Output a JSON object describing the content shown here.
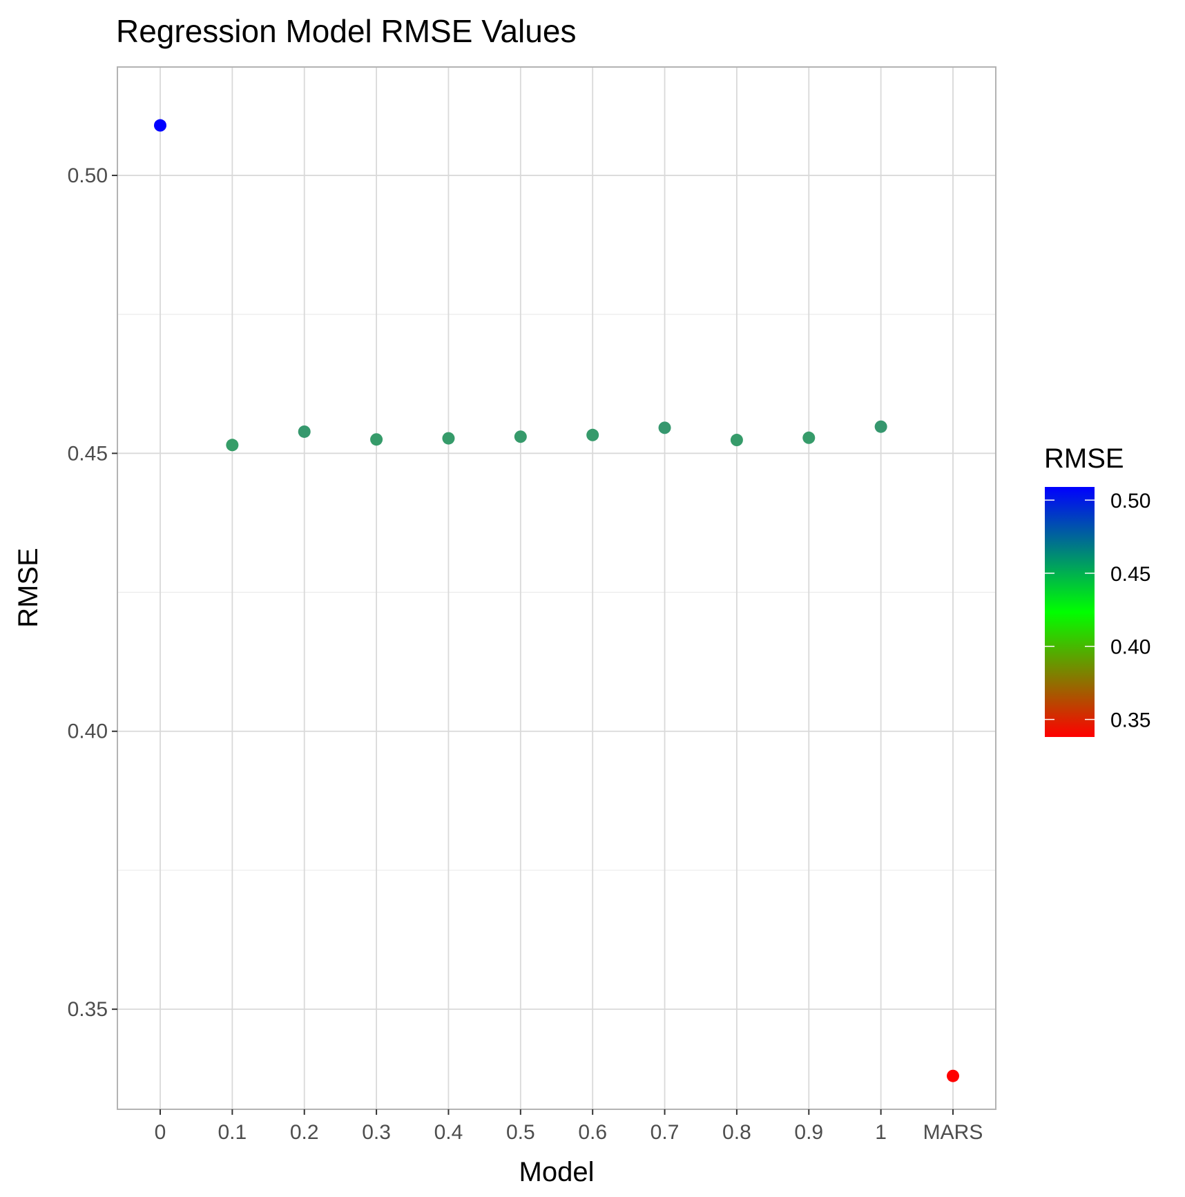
{
  "chart_data": {
    "type": "scatter",
    "title": "Regression Model RMSE Values",
    "xlabel": "Model",
    "ylabel": "RMSE",
    "categories": [
      "0",
      "0.1",
      "0.2",
      "0.3",
      "0.4",
      "0.5",
      "0.6",
      "0.7",
      "0.8",
      "0.9",
      "1",
      "MARS"
    ],
    "values": [
      0.509,
      0.4515,
      0.4539,
      0.4525,
      0.4527,
      0.453,
      0.4533,
      0.4546,
      0.4524,
      0.4528,
      0.4548,
      0.338
    ],
    "ylim": [
      0.332,
      0.5195
    ],
    "y_ticks": [
      "0.35",
      "0.40",
      "0.45",
      "0.50"
    ],
    "grid": true,
    "legend": {
      "title": "RMSE",
      "placement": "right",
      "type": "colorbar",
      "range": [
        0.338,
        0.509
      ],
      "ticks": [
        "0.35",
        "0.40",
        "0.45",
        "0.50"
      ],
      "gradient": [
        "#ff0000",
        "#00ff00",
        "#0000ff"
      ]
    },
    "colors": {
      "low": "#ff0000",
      "mid": "#00ff00",
      "high": "#0000ff",
      "panel_border": "#b3b3b3",
      "grid_major": "#d9d9d9",
      "grid_minor": "#ebebeb"
    }
  }
}
